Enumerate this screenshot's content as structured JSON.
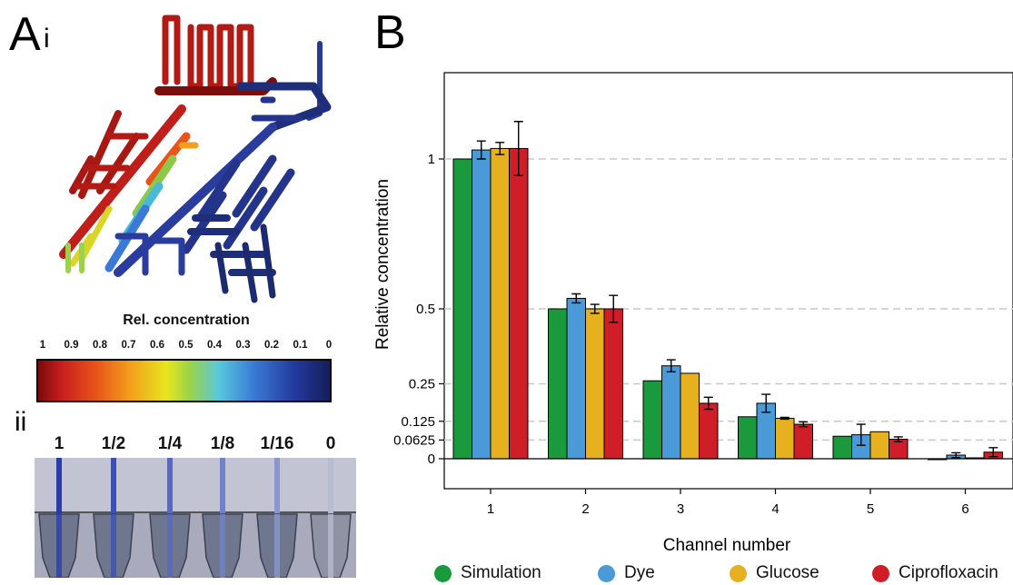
{
  "panels": {
    "a_main": "A",
    "a_sub": "i",
    "a_ii": "ii",
    "b": "B"
  },
  "colorbar": {
    "title": "Rel. concentration",
    "ticks": [
      "1",
      "0.9",
      "0.8",
      "0.7",
      "0.6",
      "0.5",
      "0.4",
      "0.3",
      "0.2",
      "0.1",
      "0"
    ]
  },
  "dilutions": [
    "1",
    "1/2",
    "1/4",
    "1/8",
    "1/16",
    "0"
  ],
  "chart_data": {
    "type": "bar",
    "xlabel": "Channel number",
    "ylabel": "Relative concentration",
    "categories": [
      "1",
      "2",
      "3",
      "4",
      "5",
      "6"
    ],
    "yticks": [
      "0",
      "0.0625",
      "0.125",
      "0.25",
      "0.5",
      "1"
    ],
    "grid": "horizontal dashed",
    "legend_position": "bottom",
    "series": [
      {
        "name": "Simulation",
        "color": "#1a9a3c",
        "values": [
          1.0,
          0.5,
          0.26,
          0.14,
          0.075,
          0.0
        ],
        "errors": [
          0,
          0,
          0,
          0,
          0,
          0
        ]
      },
      {
        "name": "Dye",
        "color": "#4a9ad8",
        "values": [
          1.03,
          0.535,
          0.31,
          0.185,
          0.08,
          0.012
        ],
        "errors": [
          0.03,
          0.015,
          0.02,
          0.03,
          0.035,
          0.008
        ]
      },
      {
        "name": "Glucose",
        "color": "#e6b01e",
        "values": [
          1.035,
          0.5,
          0.285,
          0.135,
          0.09,
          0.003
        ],
        "errors": [
          0.02,
          0.015,
          0,
          0.003,
          0,
          0
        ]
      },
      {
        "name": "Ciprofloxacin",
        "color": "#d01e28",
        "values": [
          1.035,
          0.5,
          0.185,
          0.115,
          0.065,
          0.022
        ],
        "errors": [
          0.09,
          0.045,
          0.02,
          0.008,
          0.008,
          0.015
        ]
      }
    ]
  }
}
